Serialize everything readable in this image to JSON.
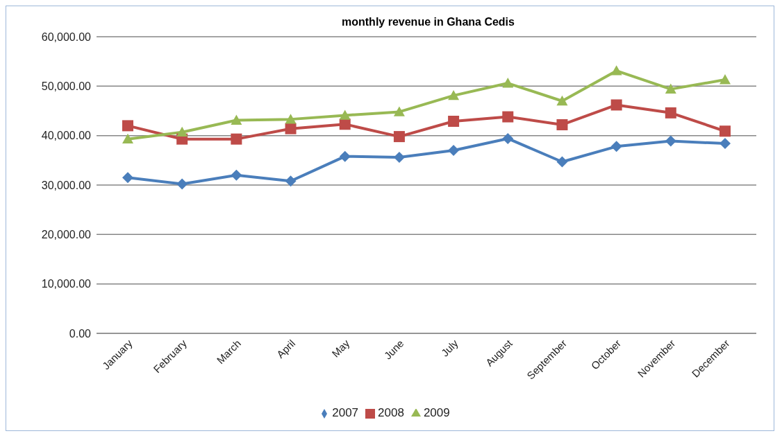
{
  "chart_data": {
    "type": "line",
    "title": "monthly revenue in Ghana Cedis",
    "categories": [
      "January",
      "February",
      "March",
      "April",
      "May",
      "June",
      "July",
      "August",
      "September",
      "October",
      "November",
      "December"
    ],
    "series": [
      {
        "name": "2007",
        "color": "#4a7ebb",
        "marker": "diamond",
        "values": [
          31500,
          30200,
          32000,
          30800,
          35800,
          35600,
          37000,
          39400,
          34700,
          37800,
          38900,
          38400
        ]
      },
      {
        "name": "2008",
        "color": "#be4b48",
        "marker": "square",
        "values": [
          42000,
          39300,
          39300,
          41400,
          42300,
          39800,
          42900,
          43800,
          42200,
          46200,
          44600,
          40900
        ]
      },
      {
        "name": "2009",
        "color": "#98b954",
        "marker": "triangle",
        "values": [
          39300,
          40700,
          43100,
          43300,
          44100,
          44800,
          48100,
          50600,
          47000,
          53100,
          49400,
          51300
        ]
      }
    ],
    "ylim": [
      0,
      60000
    ],
    "yticks": [
      {
        "value": 0,
        "label": "0.00"
      },
      {
        "value": 10000,
        "label": "10,000.00"
      },
      {
        "value": 20000,
        "label": "20,000.00"
      },
      {
        "value": 30000,
        "label": "30,000.00"
      },
      {
        "value": 40000,
        "label": "40,000.00"
      },
      {
        "value": 50000,
        "label": "50,000.00"
      },
      {
        "value": 60000,
        "label": "60,000.00"
      }
    ],
    "grid": "y",
    "legend": "bottom",
    "line_style": "solid"
  }
}
